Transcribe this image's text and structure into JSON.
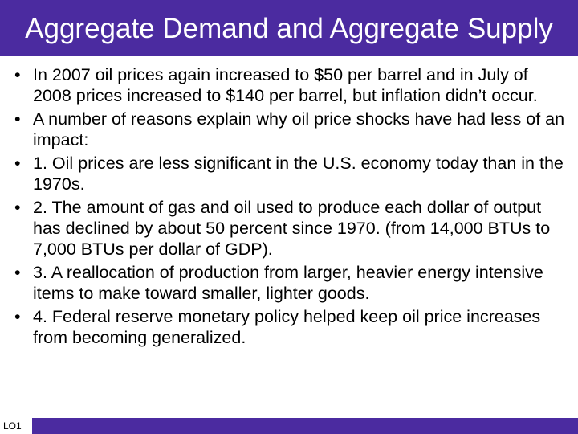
{
  "header": {
    "title": "Aggregate Demand and Aggregate Supply"
  },
  "bullets": [
    "In 2007 oil prices again increased to $50 per barrel and in July of 2008 prices increased to $140 per barrel, but inflation didn’t occur.",
    "A number of reasons explain why oil price shocks have had less of an impact:",
    "1. Oil prices are less significant in the U.S. economy today than in the 1970s.",
    "2. The amount of gas and oil used to produce each dollar of output has declined by about 50 percent since 1970. (from 14,000 BTUs to 7,000 BTUs per dollar of GDP).",
    "3. A reallocation of production from larger, heavier energy intensive items to make toward smaller, lighter goods.",
    "4. Federal reserve monetary policy helped keep oil price increases from becoming generalized."
  ],
  "footer": {
    "label": "LO1"
  }
}
